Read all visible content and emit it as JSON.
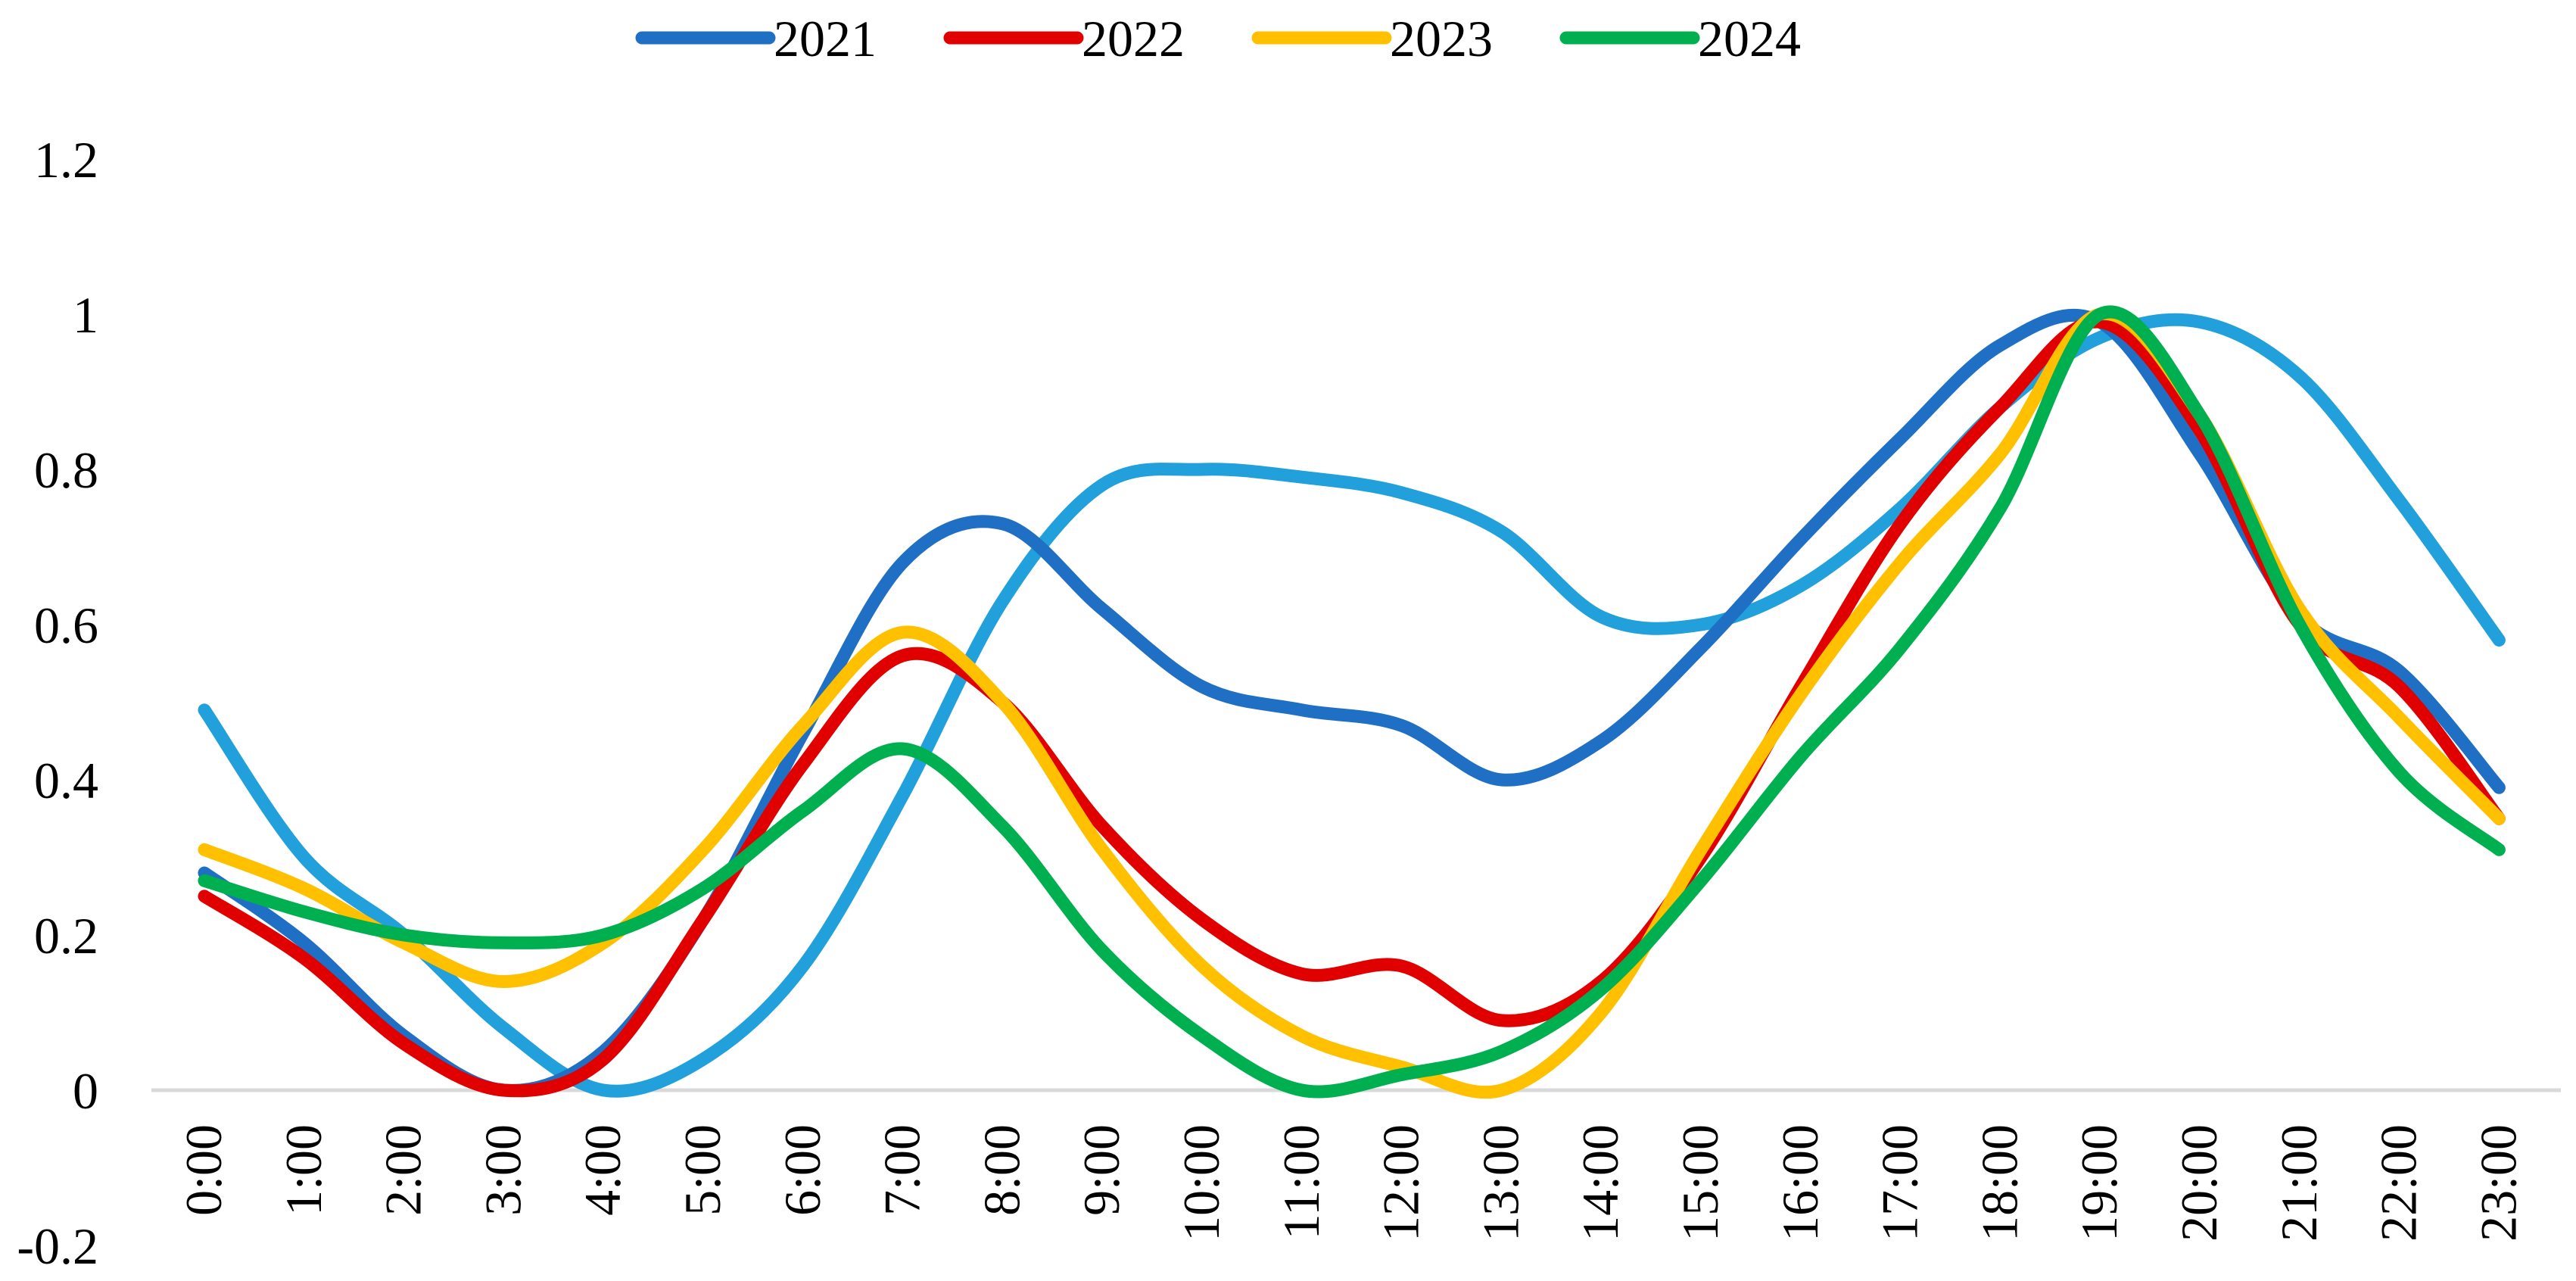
{
  "chart_data": {
    "type": "line",
    "title": "",
    "xlabel": "",
    "ylabel": "",
    "categories": [
      "0:00",
      "1:00",
      "2:00",
      "3:00",
      "4:00",
      "5:00",
      "6:00",
      "7:00",
      "8:00",
      "9:00",
      "10:00",
      "11:00",
      "12:00",
      "13:00",
      "14:00",
      "15:00",
      "16:00",
      "17:00",
      "18:00",
      "19:00",
      "20:00",
      "21:00",
      "22:00",
      "23:00"
    ],
    "ylim": [
      -0.2,
      1.2
    ],
    "yticks": [
      "-0.2",
      "0",
      "0.2",
      "0.4",
      "0.6",
      "0.8",
      "1",
      "1.2"
    ],
    "legend_position": "top",
    "series": [
      {
        "name": "2021",
        "color": "#1F6FC5",
        "in_legend": true,
        "values": [
          0.28,
          0.19,
          0.07,
          0.0,
          0.05,
          0.22,
          0.46,
          0.68,
          0.73,
          0.62,
          0.52,
          0.49,
          0.47,
          0.4,
          0.45,
          0.57,
          0.71,
          0.84,
          0.96,
          0.99,
          0.82,
          0.61,
          0.54,
          0.39
        ]
      },
      {
        "name": "2022",
        "color": "#E00000",
        "in_legend": true,
        "values": [
          0.25,
          0.17,
          0.06,
          0.0,
          0.04,
          0.22,
          0.42,
          0.56,
          0.5,
          0.34,
          0.22,
          0.15,
          0.16,
          0.09,
          0.14,
          0.3,
          0.52,
          0.73,
          0.88,
          0.99,
          0.85,
          0.6,
          0.52,
          0.35
        ]
      },
      {
        "name": "2023",
        "color": "#FFC000",
        "in_legend": true,
        "values": [
          0.31,
          0.26,
          0.19,
          0.14,
          0.19,
          0.31,
          0.47,
          0.59,
          0.5,
          0.31,
          0.16,
          0.07,
          0.03,
          0.0,
          0.1,
          0.31,
          0.51,
          0.68,
          0.82,
          1.0,
          0.87,
          0.62,
          0.48,
          0.35
        ]
      },
      {
        "name": "2024",
        "color": "#00B050",
        "in_legend": true,
        "values": [
          0.27,
          0.23,
          0.2,
          0.19,
          0.2,
          0.26,
          0.36,
          0.44,
          0.34,
          0.18,
          0.07,
          0.0,
          0.02,
          0.05,
          0.13,
          0.27,
          0.43,
          0.57,
          0.75,
          1.0,
          0.87,
          0.6,
          0.41,
          0.31
        ]
      },
      {
        "name": "",
        "color": "#21A0DB",
        "in_legend": false,
        "values": [
          0.49,
          0.3,
          0.2,
          0.08,
          0.0,
          0.04,
          0.16,
          0.38,
          0.63,
          0.78,
          0.8,
          0.79,
          0.77,
          0.72,
          0.61,
          0.6,
          0.65,
          0.75,
          0.88,
          0.97,
          0.99,
          0.92,
          0.76,
          0.58
        ]
      }
    ]
  }
}
